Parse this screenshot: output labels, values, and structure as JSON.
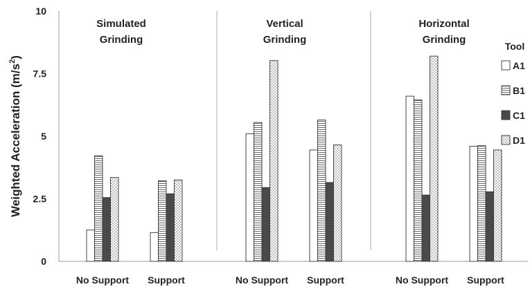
{
  "chart_data": {
    "type": "bar",
    "ylabel": "Weighted Acceleration (m/s",
    "ylabel_sup": "2",
    "ylabel_close": ")",
    "ylim": [
      0,
      10
    ],
    "yticks": [
      "0",
      "2.5",
      "5",
      "7.5",
      "10"
    ],
    "ytick_values": [
      0,
      2.5,
      5,
      7.5,
      10
    ],
    "grid": false,
    "panels": [
      {
        "title_line1": "Simulated",
        "title_line2": "Grinding"
      },
      {
        "title_line1": "Vertical",
        "title_line2": "Grinding"
      },
      {
        "title_line1": "Horizontal",
        "title_line2": "Grinding"
      }
    ],
    "categories": [
      "No Support",
      "Support",
      "No Support",
      "Support",
      "No Support",
      "Support"
    ],
    "legend_title": "Tool",
    "legend_position": "right",
    "series": [
      {
        "name": "A1",
        "pattern": "white",
        "values": [
          1.25,
          1.15,
          5.1,
          4.45,
          6.6,
          4.6
        ]
      },
      {
        "name": "B1",
        "pattern": "hlines",
        "values": [
          4.22,
          3.22,
          5.55,
          5.65,
          6.45,
          4.62
        ]
      },
      {
        "name": "C1",
        "pattern": "dark",
        "values": [
          2.55,
          2.7,
          2.95,
          3.15,
          2.65,
          2.78
        ]
      },
      {
        "name": "D1",
        "pattern": "dots",
        "values": [
          3.35,
          3.25,
          8.02,
          4.65,
          8.2,
          4.45
        ]
      }
    ]
  }
}
